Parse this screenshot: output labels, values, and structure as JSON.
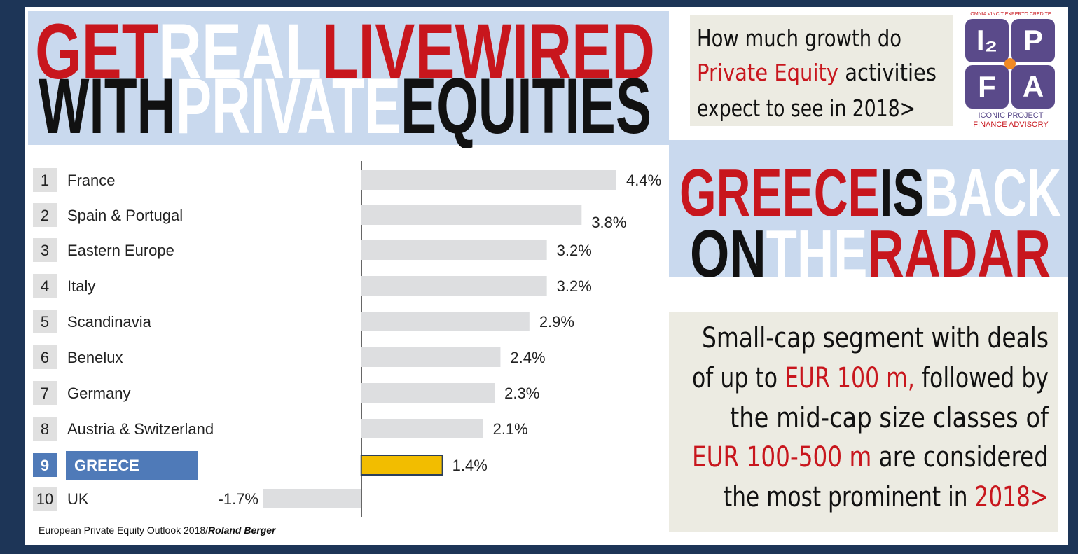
{
  "headline": {
    "lines": [
      {
        "runs": [
          {
            "text": "GET",
            "color": "#c8161d"
          },
          {
            "text": "REAL",
            "color": "#ffffff"
          },
          {
            "text": "LIVEWIRED",
            "color": "#c8161d"
          }
        ]
      },
      {
        "runs": [
          {
            "text": "WITH",
            "color": "#111111"
          },
          {
            "text": "PRIVATE",
            "color": "#ffffff"
          },
          {
            "text": "EQUITIES",
            "color": "#111111"
          }
        ]
      }
    ]
  },
  "question": {
    "lines": [
      {
        "runs": [
          {
            "text": "How much growth do",
            "color": "#111111"
          }
        ]
      },
      {
        "runs": [
          {
            "text": "Private Equity",
            "color": "#c8161d"
          },
          {
            "text": " activities",
            "color": "#111111"
          }
        ]
      },
      {
        "runs": [
          {
            "text": "expect to see in 2018>",
            "color": "#111111"
          }
        ]
      }
    ]
  },
  "logo": {
    "motto": "OMNIA VINCIT EXPERTO CREDITE",
    "letters": [
      "I₂",
      "P",
      "F",
      "A"
    ],
    "name_lines": [
      "ICONIC PROJECT",
      "FINANCE ADVISORY"
    ]
  },
  "subheadline": {
    "lines": [
      {
        "runs": [
          {
            "text": "GREECE",
            "color": "#c8161d"
          },
          {
            "text": "IS",
            "color": "#111111"
          },
          {
            "text": "BACK",
            "color": "#ffffff"
          }
        ]
      },
      {
        "runs": [
          {
            "text": "ON",
            "color": "#111111"
          },
          {
            "text": "THE",
            "color": "#ffffff"
          },
          {
            "text": "RADAR",
            "color": "#c8161d"
          }
        ]
      }
    ]
  },
  "paragraph": {
    "lines": [
      {
        "runs": [
          {
            "text": "Small-cap segment with deals",
            "color": "#111111"
          }
        ]
      },
      {
        "runs": [
          {
            "text": "of up to ",
            "color": "#111111"
          },
          {
            "text": "EUR 100 m,",
            "color": "#c8161d"
          },
          {
            "text": " followed by",
            "color": "#111111"
          }
        ]
      },
      {
        "runs": [
          {
            "text": "the mid-cap size classes of",
            "color": "#111111"
          }
        ]
      },
      {
        "runs": [
          {
            "text": "EUR 100-500 m",
            "color": "#c8161d"
          },
          {
            "text": " are considered",
            "color": "#111111"
          }
        ]
      },
      {
        "runs": [
          {
            "text": "the most prominent in ",
            "color": "#111111"
          },
          {
            "text": "2018>",
            "color": "#c8161d"
          }
        ]
      }
    ]
  },
  "chart_data": {
    "type": "bar",
    "orientation": "horizontal",
    "ranks": [
      1,
      2,
      3,
      4,
      5,
      6,
      7,
      8,
      9,
      10
    ],
    "categories": [
      "France",
      "Spain & Portugal",
      "Eastern Europe",
      "Italy",
      "Scandinavia",
      "Benelux",
      "Germany",
      "Austria & Switzerland",
      "GREECE",
      "UK"
    ],
    "values": [
      4.4,
      3.8,
      3.2,
      3.2,
      2.9,
      2.4,
      2.3,
      2.1,
      1.4,
      -1.7
    ],
    "value_labels": [
      "4.4%",
      "3.8%",
      "3.2%",
      "3.2%",
      "2.9%",
      "2.4%",
      "2.3%",
      "2.1%",
      "1.4%",
      "-1.7%"
    ],
    "colors": [
      "#dddee0",
      "#dddee0",
      "#dddee0",
      "#dddee0",
      "#dddee0",
      "#dddee0",
      "#dddee0",
      "#dddee0",
      "#f2bd00",
      "#dddee0"
    ],
    "label_highlight": [
      false,
      false,
      false,
      false,
      false,
      false,
      false,
      false,
      true,
      false
    ],
    "xlim": [
      -1.7,
      4.4
    ]
  },
  "source": {
    "text": "European Private Equity Outlook 2018/",
    "author": "Roland Berger"
  }
}
